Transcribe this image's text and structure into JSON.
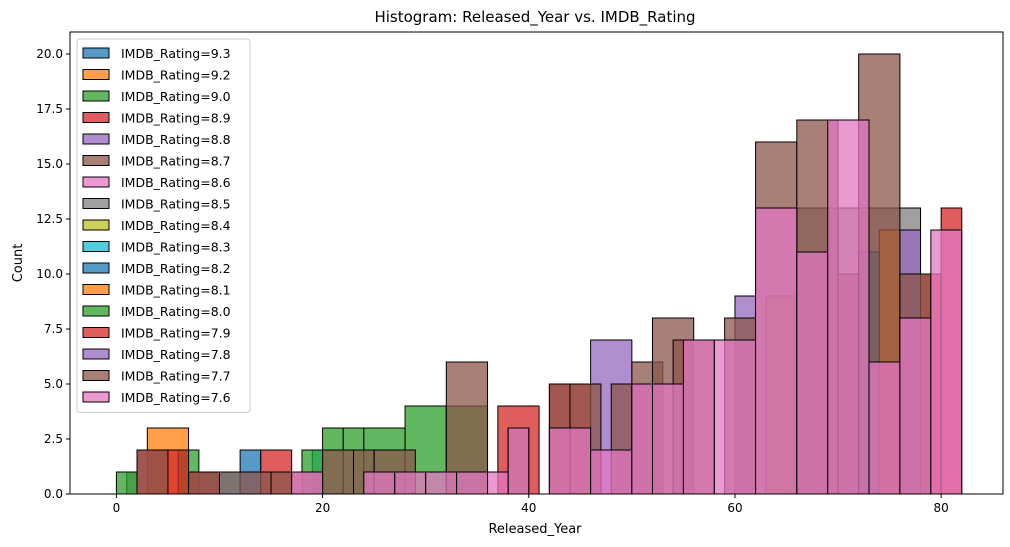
{
  "chart_data": {
    "type": "histogram",
    "title": "Histogram: Released_Year vs. IMDB_Rating",
    "xlabel": "Released_Year",
    "ylabel": "Count",
    "xlim": [
      -4.5,
      86
    ],
    "ylim": [
      0,
      21
    ],
    "xticks": [
      0,
      20,
      40,
      60,
      80
    ],
    "yticks": [
      0.0,
      2.5,
      5.0,
      7.5,
      10.0,
      12.5,
      15.0,
      17.5,
      20.0
    ],
    "grid": false,
    "legend_position": "upper left",
    "series": [
      {
        "name": "IMDB_Rating=9.3",
        "color": "#1f77b4",
        "bins": []
      },
      {
        "name": "IMDB_Rating=9.2",
        "color": "#ff7f0e",
        "bins": []
      },
      {
        "name": "IMDB_Rating=9.0",
        "color": "#2ca02c",
        "bins": []
      },
      {
        "name": "IMDB_Rating=8.9",
        "color": "#d62728",
        "bins": []
      },
      {
        "name": "IMDB_Rating=8.8",
        "color": "#9467bd",
        "bins": []
      },
      {
        "name": "IMDB_Rating=8.7",
        "color": "#8c564b",
        "bins": []
      },
      {
        "name": "IMDB_Rating=8.6",
        "color": "#e377c2",
        "bins": []
      },
      {
        "name": "IMDB_Rating=8.5",
        "color": "#7f7f7f",
        "bins": [
          [
            1,
            2,
            1
          ],
          [
            66,
            78,
            13
          ]
        ]
      },
      {
        "name": "IMDB_Rating=8.4",
        "color": "#bcbd22",
        "bins": [
          [
            63,
            66,
            9
          ]
        ]
      },
      {
        "name": "IMDB_Rating=8.3",
        "color": "#17becf",
        "bins": [
          [
            8,
            12,
            1
          ],
          [
            19,
            20,
            2
          ]
        ]
      },
      {
        "name": "IMDB_Rating=8.2",
        "color": "#1f77b4",
        "bins": [
          [
            12,
            14,
            2
          ],
          [
            72,
            74,
            11
          ]
        ]
      },
      {
        "name": "IMDB_Rating=8.1",
        "color": "#ff7f0e",
        "bins": [
          [
            3,
            7,
            3
          ],
          [
            74,
            76,
            12
          ]
        ]
      },
      {
        "name": "IMDB_Rating=8.0",
        "color": "#2ca02c",
        "bins": [
          [
            0,
            2,
            1
          ],
          [
            6,
            8,
            2
          ],
          [
            18,
            20,
            2
          ],
          [
            20,
            22,
            3
          ],
          [
            22,
            24,
            3
          ],
          [
            24,
            28,
            3
          ],
          [
            28,
            32,
            4
          ],
          [
            32,
            36,
            4
          ]
        ]
      },
      {
        "name": "IMDB_Rating=7.9",
        "color": "#d62728",
        "bins": [
          [
            2,
            7,
            2
          ],
          [
            7,
            10,
            1
          ],
          [
            14,
            17,
            2
          ],
          [
            37,
            41,
            4
          ],
          [
            42,
            46,
            5
          ],
          [
            78,
            80,
            10
          ],
          [
            80,
            82,
            13
          ]
        ]
      },
      {
        "name": "IMDB_Rating=7.8",
        "color": "#9467bd",
        "bins": [
          [
            46,
            50,
            7
          ],
          [
            50,
            53,
            5
          ],
          [
            60,
            62,
            9
          ],
          [
            76,
            78,
            12
          ]
        ]
      },
      {
        "name": "IMDB_Rating=7.7",
        "color": "#8c564b",
        "bins": [
          [
            2,
            5,
            2
          ],
          [
            7,
            10,
            1
          ],
          [
            10,
            15,
            1
          ],
          [
            15,
            17,
            1
          ],
          [
            17,
            20,
            1
          ],
          [
            20,
            23,
            2
          ],
          [
            23,
            25,
            2
          ],
          [
            25,
            29,
            2
          ],
          [
            32,
            36,
            6
          ],
          [
            38,
            40,
            3
          ],
          [
            42,
            44,
            5
          ],
          [
            44,
            47,
            5
          ],
          [
            48,
            50,
            5
          ],
          [
            50,
            53,
            6
          ],
          [
            52,
            56,
            8
          ],
          [
            54,
            58,
            7
          ],
          [
            59,
            62,
            8
          ],
          [
            62,
            66,
            16
          ],
          [
            66,
            70,
            17
          ],
          [
            70,
            72,
            10
          ],
          [
            72,
            76,
            20
          ],
          [
            76,
            79,
            10
          ]
        ]
      },
      {
        "name": "IMDB_Rating=7.6",
        "color": "#e377c2",
        "bins": [
          [
            17,
            20,
            1
          ],
          [
            24,
            27,
            1
          ],
          [
            27,
            30,
            1
          ],
          [
            30,
            33,
            1
          ],
          [
            33,
            36,
            1
          ],
          [
            36,
            38,
            1
          ],
          [
            38,
            40,
            3
          ],
          [
            42,
            46,
            3
          ],
          [
            46,
            50,
            2
          ],
          [
            50,
            52,
            5
          ],
          [
            52,
            55,
            5
          ],
          [
            55,
            58,
            7
          ],
          [
            58,
            62,
            7
          ],
          [
            62,
            66,
            13
          ],
          [
            66,
            69,
            11
          ],
          [
            69,
            73,
            17
          ],
          [
            73,
            76,
            6
          ],
          [
            76,
            79,
            8
          ],
          [
            79,
            82,
            12
          ]
        ]
      }
    ]
  }
}
